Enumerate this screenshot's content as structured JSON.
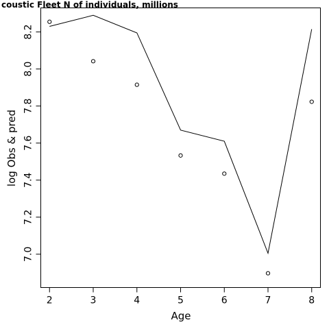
{
  "chart_data": {
    "type": "line",
    "title": "coustic Fleet   N of individuals, millions",
    "xlabel": "Age",
    "ylabel": "log Obs & pred",
    "x": [
      2,
      3,
      4,
      5,
      6,
      7,
      8
    ],
    "xticks": [
      "2",
      "3",
      "4",
      "5",
      "6",
      "7",
      "8"
    ],
    "yticks": [
      "7.0",
      "7.2",
      "7.4",
      "7.6",
      "7.8",
      "8.0",
      "8.2"
    ],
    "xlim": [
      1.8,
      8.2
    ],
    "ylim": [
      6.82,
      8.33
    ],
    "grid": false,
    "series": [
      {
        "style": "line",
        "values": [
          8.23,
          8.29,
          8.195,
          7.67,
          7.61,
          7.005,
          8.215
        ]
      },
      {
        "style": "points",
        "values": [
          8.255,
          8.042,
          7.915,
          7.533,
          7.435,
          6.897,
          7.823
        ]
      }
    ]
  }
}
